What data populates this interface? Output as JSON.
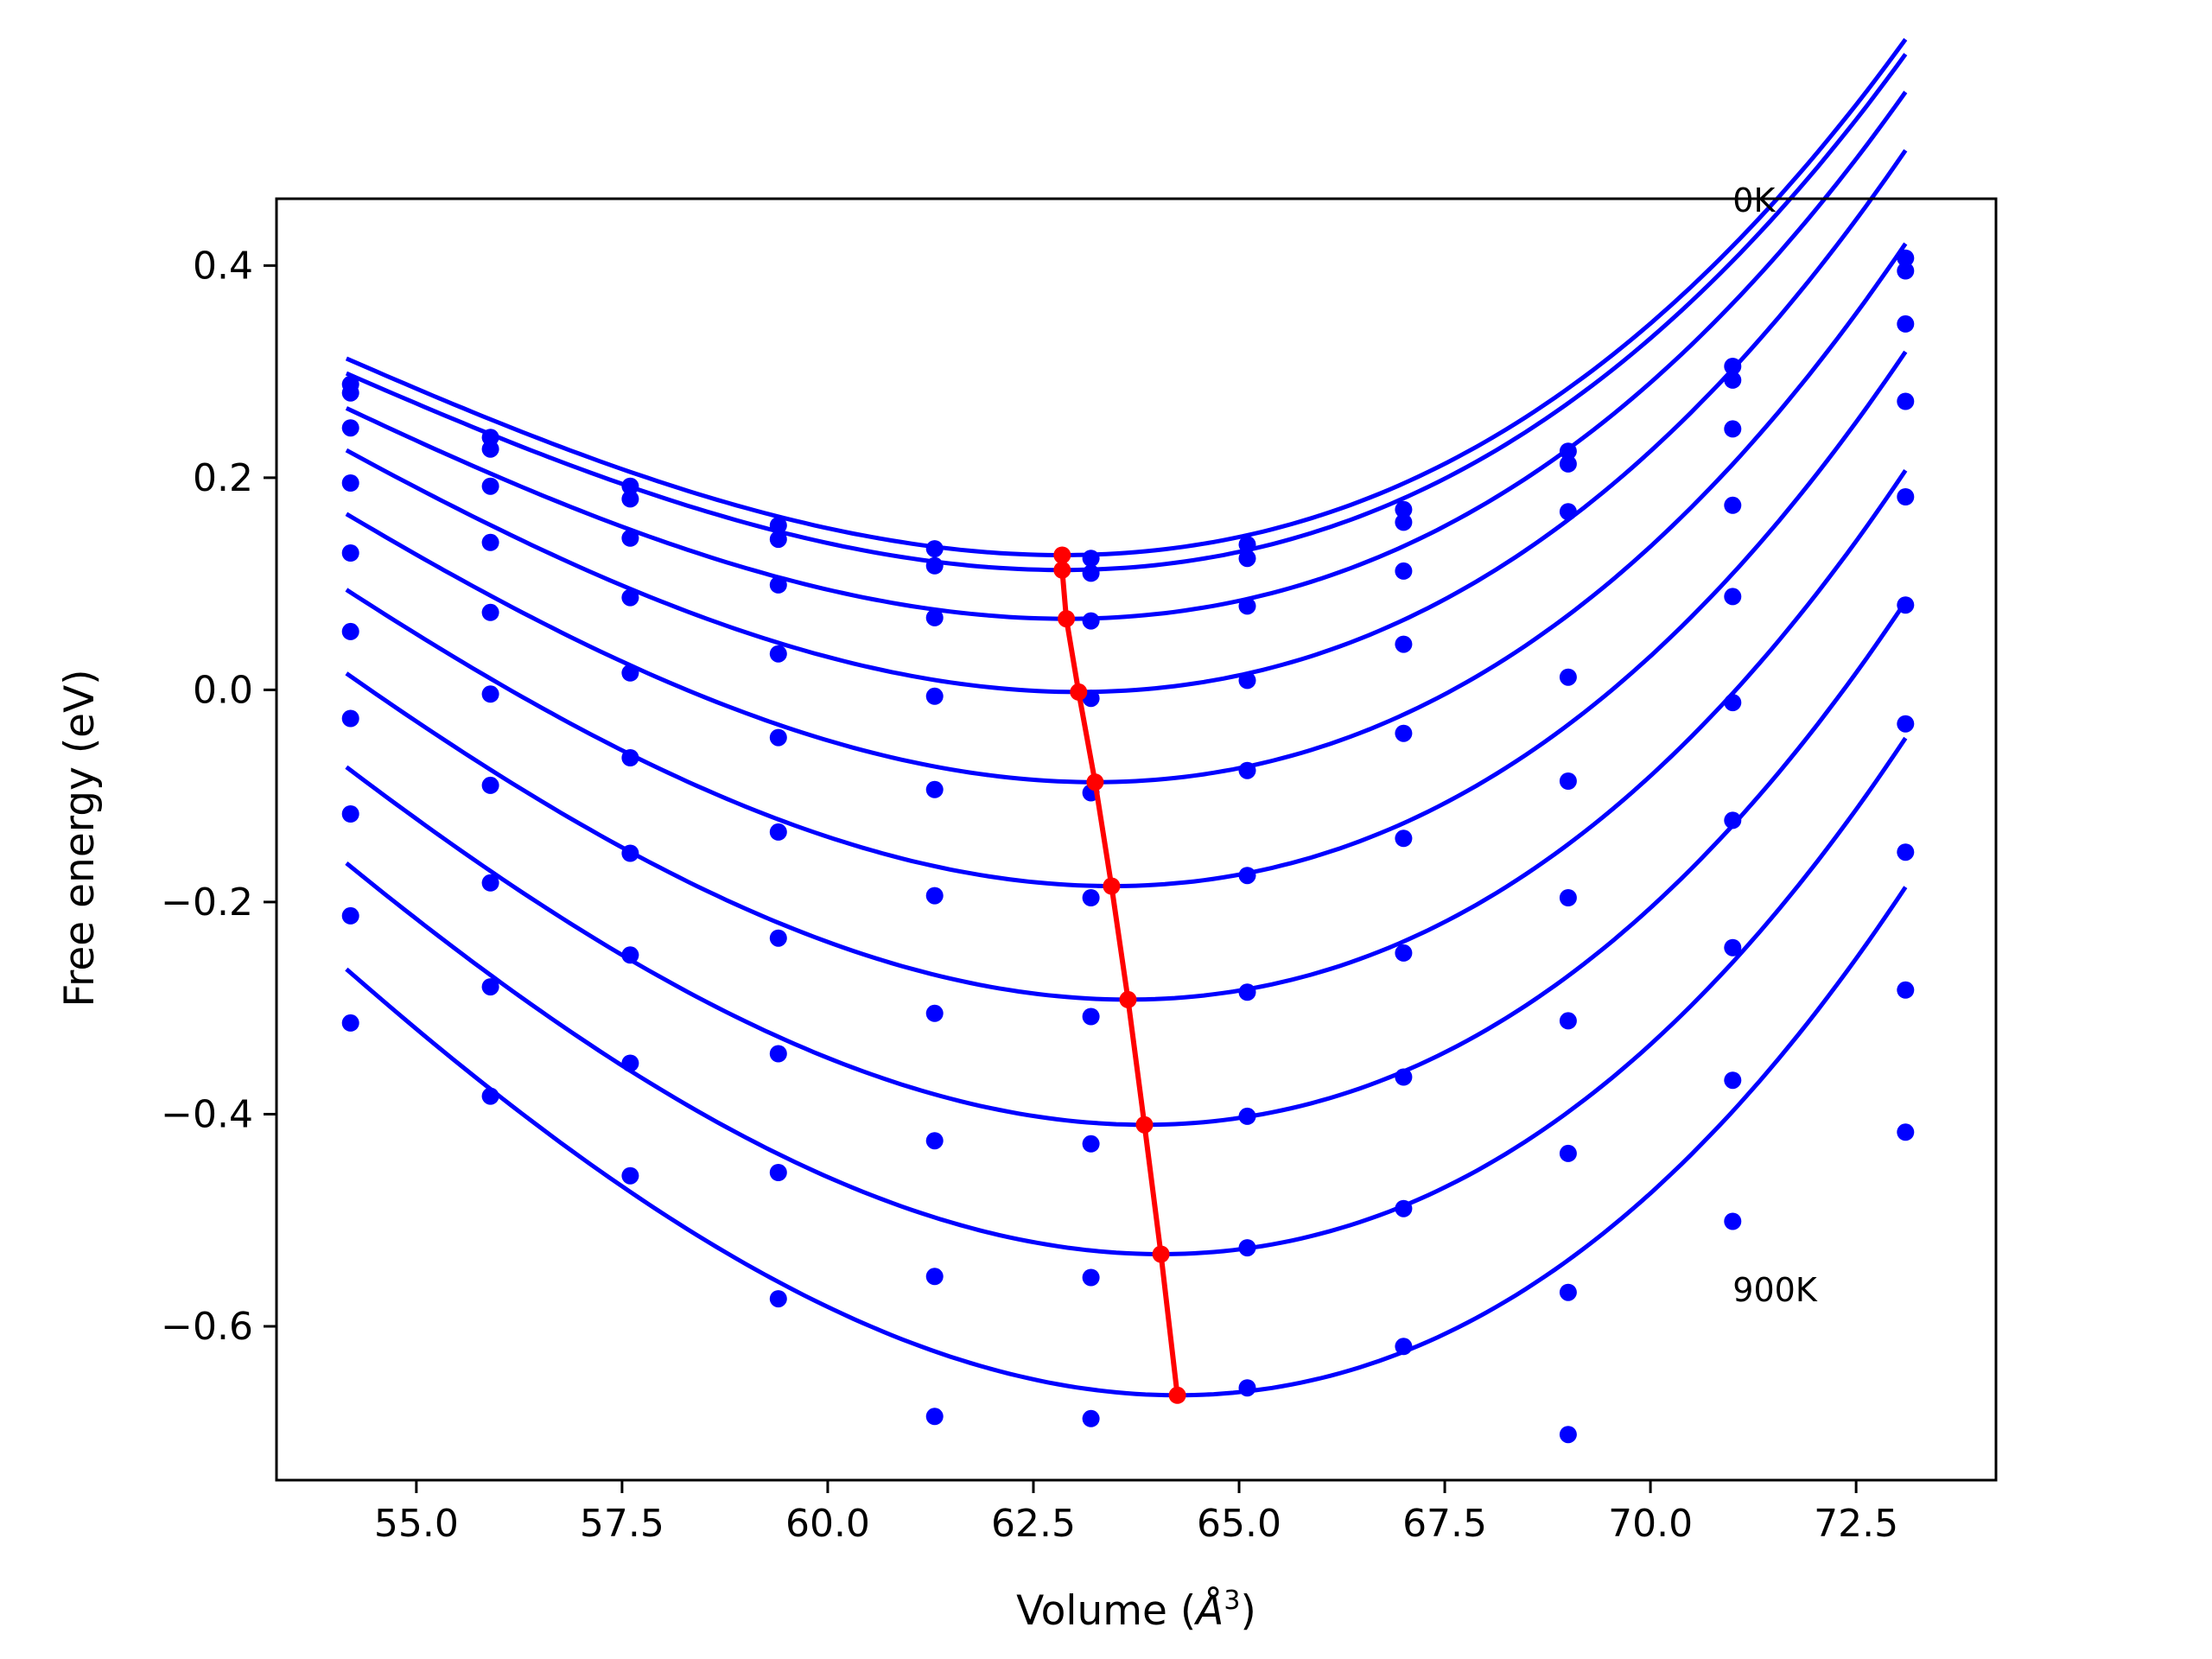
{
  "chart_data": {
    "type": "line",
    "xlabel": "Volume (",
    "xlabel_unit_base": "Å",
    "xlabel_unit_exp": "3",
    "xlabel_close": ")",
    "ylabel": "Free energy (eV)",
    "xlim": [
      53.3,
      74.2
    ],
    "ylim": [
      -0.745,
      0.463
    ],
    "xticks": [
      55.0,
      57.5,
      60.0,
      62.5,
      65.0,
      67.5,
      70.0,
      72.5
    ],
    "xtick_labels": [
      "55.0",
      "57.5",
      "60.0",
      "62.5",
      "65.0",
      "67.5",
      "70.0",
      "72.5"
    ],
    "yticks": [
      0.4,
      0.2,
      0.0,
      -0.2,
      -0.4,
      -0.6
    ],
    "ytick_labels": [
      "0.4",
      "0.2",
      "0.0",
      "−0.2",
      "−0.4",
      "−0.6"
    ],
    "grid": false,
    "annotations": [
      {
        "text": "0K",
        "x": 71.0,
        "y": 0.462
      },
      {
        "text": "900K",
        "x": 71.0,
        "y": -0.565
      }
    ],
    "data_color": "#0000ff",
    "min_color": "#ff0000",
    "volumes": [
      54.2,
      55.9,
      57.6,
      59.4,
      61.3,
      63.2,
      65.1,
      67.0,
      69.0,
      71.0,
      73.1
    ],
    "series": [
      {
        "points": [
          0.288,
          0.238,
          0.192,
          0.155,
          0.133,
          0.124,
          0.137,
          0.17,
          0.225,
          0.305,
          0.407
        ],
        "fit": {
          "v0": 62.85,
          "e0": 0.127,
          "a": 0.00345,
          "c": 0.000115
        }
      },
      {
        "points": [
          0.28,
          0.227,
          0.18,
          0.142,
          0.117,
          0.11,
          0.124,
          0.158,
          0.213,
          0.292,
          0.395
        ],
        "fit": {
          "v0": 62.85,
          "e0": 0.113,
          "a": 0.00345,
          "c": 0.000115
        }
      },
      {
        "points": [
          0.247,
          0.192,
          0.143,
          0.099,
          0.068,
          0.065,
          0.079,
          0.112,
          0.168,
          0.246,
          0.345
        ],
        "fit": {
          "v0": 62.9,
          "e0": 0.067,
          "a": 0.0036,
          "c": 0.000115
        }
      },
      {
        "points": [
          0.195,
          0.139,
          0.087,
          0.034,
          -0.006,
          -0.008,
          0.009,
          0.043,
          0.012,
          0.174,
          0.272
        ],
        "fit": {
          "v0": 63.05,
          "e0": -0.002,
          "a": 0.0039,
          "c": 0.000115
        }
      },
      {
        "points": [
          0.129,
          0.073,
          0.016,
          -0.045,
          -0.094,
          -0.097,
          -0.076,
          -0.041,
          -0.086,
          0.088,
          0.182
        ],
        "fit": {
          "v0": 63.25,
          "e0": -0.087,
          "a": 0.0041,
          "c": 0.000115
        }
      },
      {
        "points": [
          0.055,
          -0.004,
          -0.064,
          -0.134,
          -0.194,
          -0.196,
          -0.175,
          -0.14,
          -0.196,
          -0.012,
          0.08
        ],
        "fit": {
          "v0": 63.45,
          "e0": -0.185,
          "a": 0.0043,
          "c": 0.000115
        }
      },
      {
        "points": [
          -0.027,
          -0.09,
          -0.154,
          -0.234,
          -0.305,
          -0.308,
          -0.285,
          -0.248,
          -0.312,
          -0.123,
          -0.032
        ],
        "fit": {
          "v0": 63.65,
          "e0": -0.292,
          "a": 0.0045,
          "c": 0.000115
        }
      },
      {
        "points": [
          -0.117,
          -0.182,
          -0.25,
          -0.343,
          -0.425,
          -0.428,
          -0.402,
          -0.365,
          -0.437,
          -0.243,
          -0.153
        ],
        "fit": {
          "v0": 63.85,
          "e0": -0.41,
          "a": 0.0047,
          "c": 0.000115
        }
      },
      {
        "points": [
          -0.213,
          -0.28,
          -0.352,
          -0.455,
          -0.553,
          -0.554,
          -0.526,
          -0.489,
          -0.568,
          -0.368,
          -0.283
        ],
        "fit": {
          "v0": 64.05,
          "e0": -0.532,
          "a": 0.0049,
          "c": 0.000115
        }
      },
      {
        "points": [
          -0.314,
          -0.383,
          -0.458,
          -0.574,
          -0.685,
          -0.687,
          -0.658,
          -0.619,
          -0.702,
          -0.501,
          -0.417
        ],
        "fit": {
          "v0": 64.25,
          "e0": -0.665,
          "a": 0.0051,
          "c": 0.000115
        }
      }
    ],
    "minima": {
      "x": [
        62.85,
        62.85,
        62.9,
        63.05,
        63.25,
        63.45,
        63.65,
        63.85,
        64.05,
        64.25
      ],
      "y": [
        0.127,
        0.113,
        0.067,
        -0.002,
        -0.087,
        -0.185,
        -0.292,
        -0.41,
        -0.532,
        -0.665
      ]
    }
  }
}
